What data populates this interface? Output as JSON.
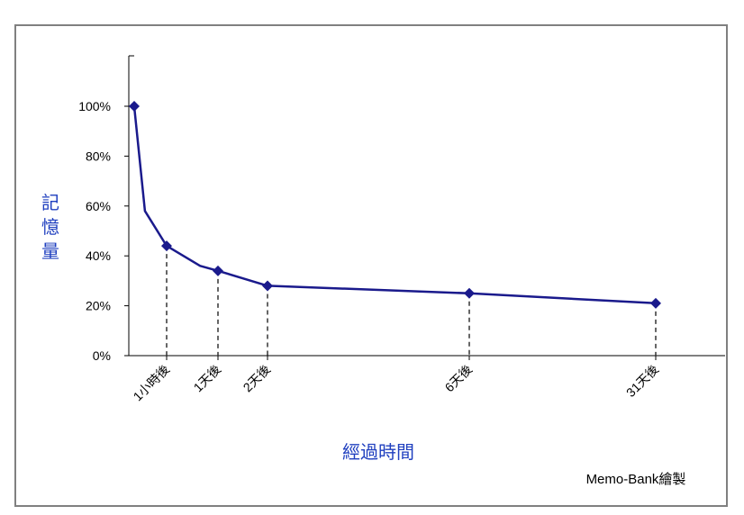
{
  "chart_data": {
    "type": "line",
    "xlabel": "經過時間",
    "ylabel": "記憶量",
    "credit": "Memo-Bank繪製",
    "ylim": [
      0,
      100
    ],
    "yticks": [
      "0%",
      "20%",
      "40%",
      "60%",
      "80%",
      "100%"
    ],
    "ytick_values": [
      0,
      20,
      40,
      60,
      80,
      100
    ],
    "grid": false,
    "line_color": "#1a1a8c",
    "marker": "diamond",
    "points": [
      {
        "t_hours": 0,
        "value": 100,
        "label": "",
        "marker": true
      },
      {
        "t_hours": 0.33,
        "value": 58,
        "label": "",
        "marker": false
      },
      {
        "t_hours": 1,
        "value": 44,
        "label": "1小時後",
        "marker": true
      },
      {
        "t_hours": 16,
        "value": 36,
        "label": "",
        "marker": false
      },
      {
        "t_hours": 24,
        "value": 34,
        "label": "1天後",
        "marker": true
      },
      {
        "t_hours": 48,
        "value": 28,
        "label": "2天後",
        "marker": true
      },
      {
        "t_hours": 144,
        "value": 25,
        "label": "6天後",
        "marker": true
      },
      {
        "t_hours": 744,
        "value": 21,
        "label": "31天後",
        "marker": true
      }
    ]
  }
}
